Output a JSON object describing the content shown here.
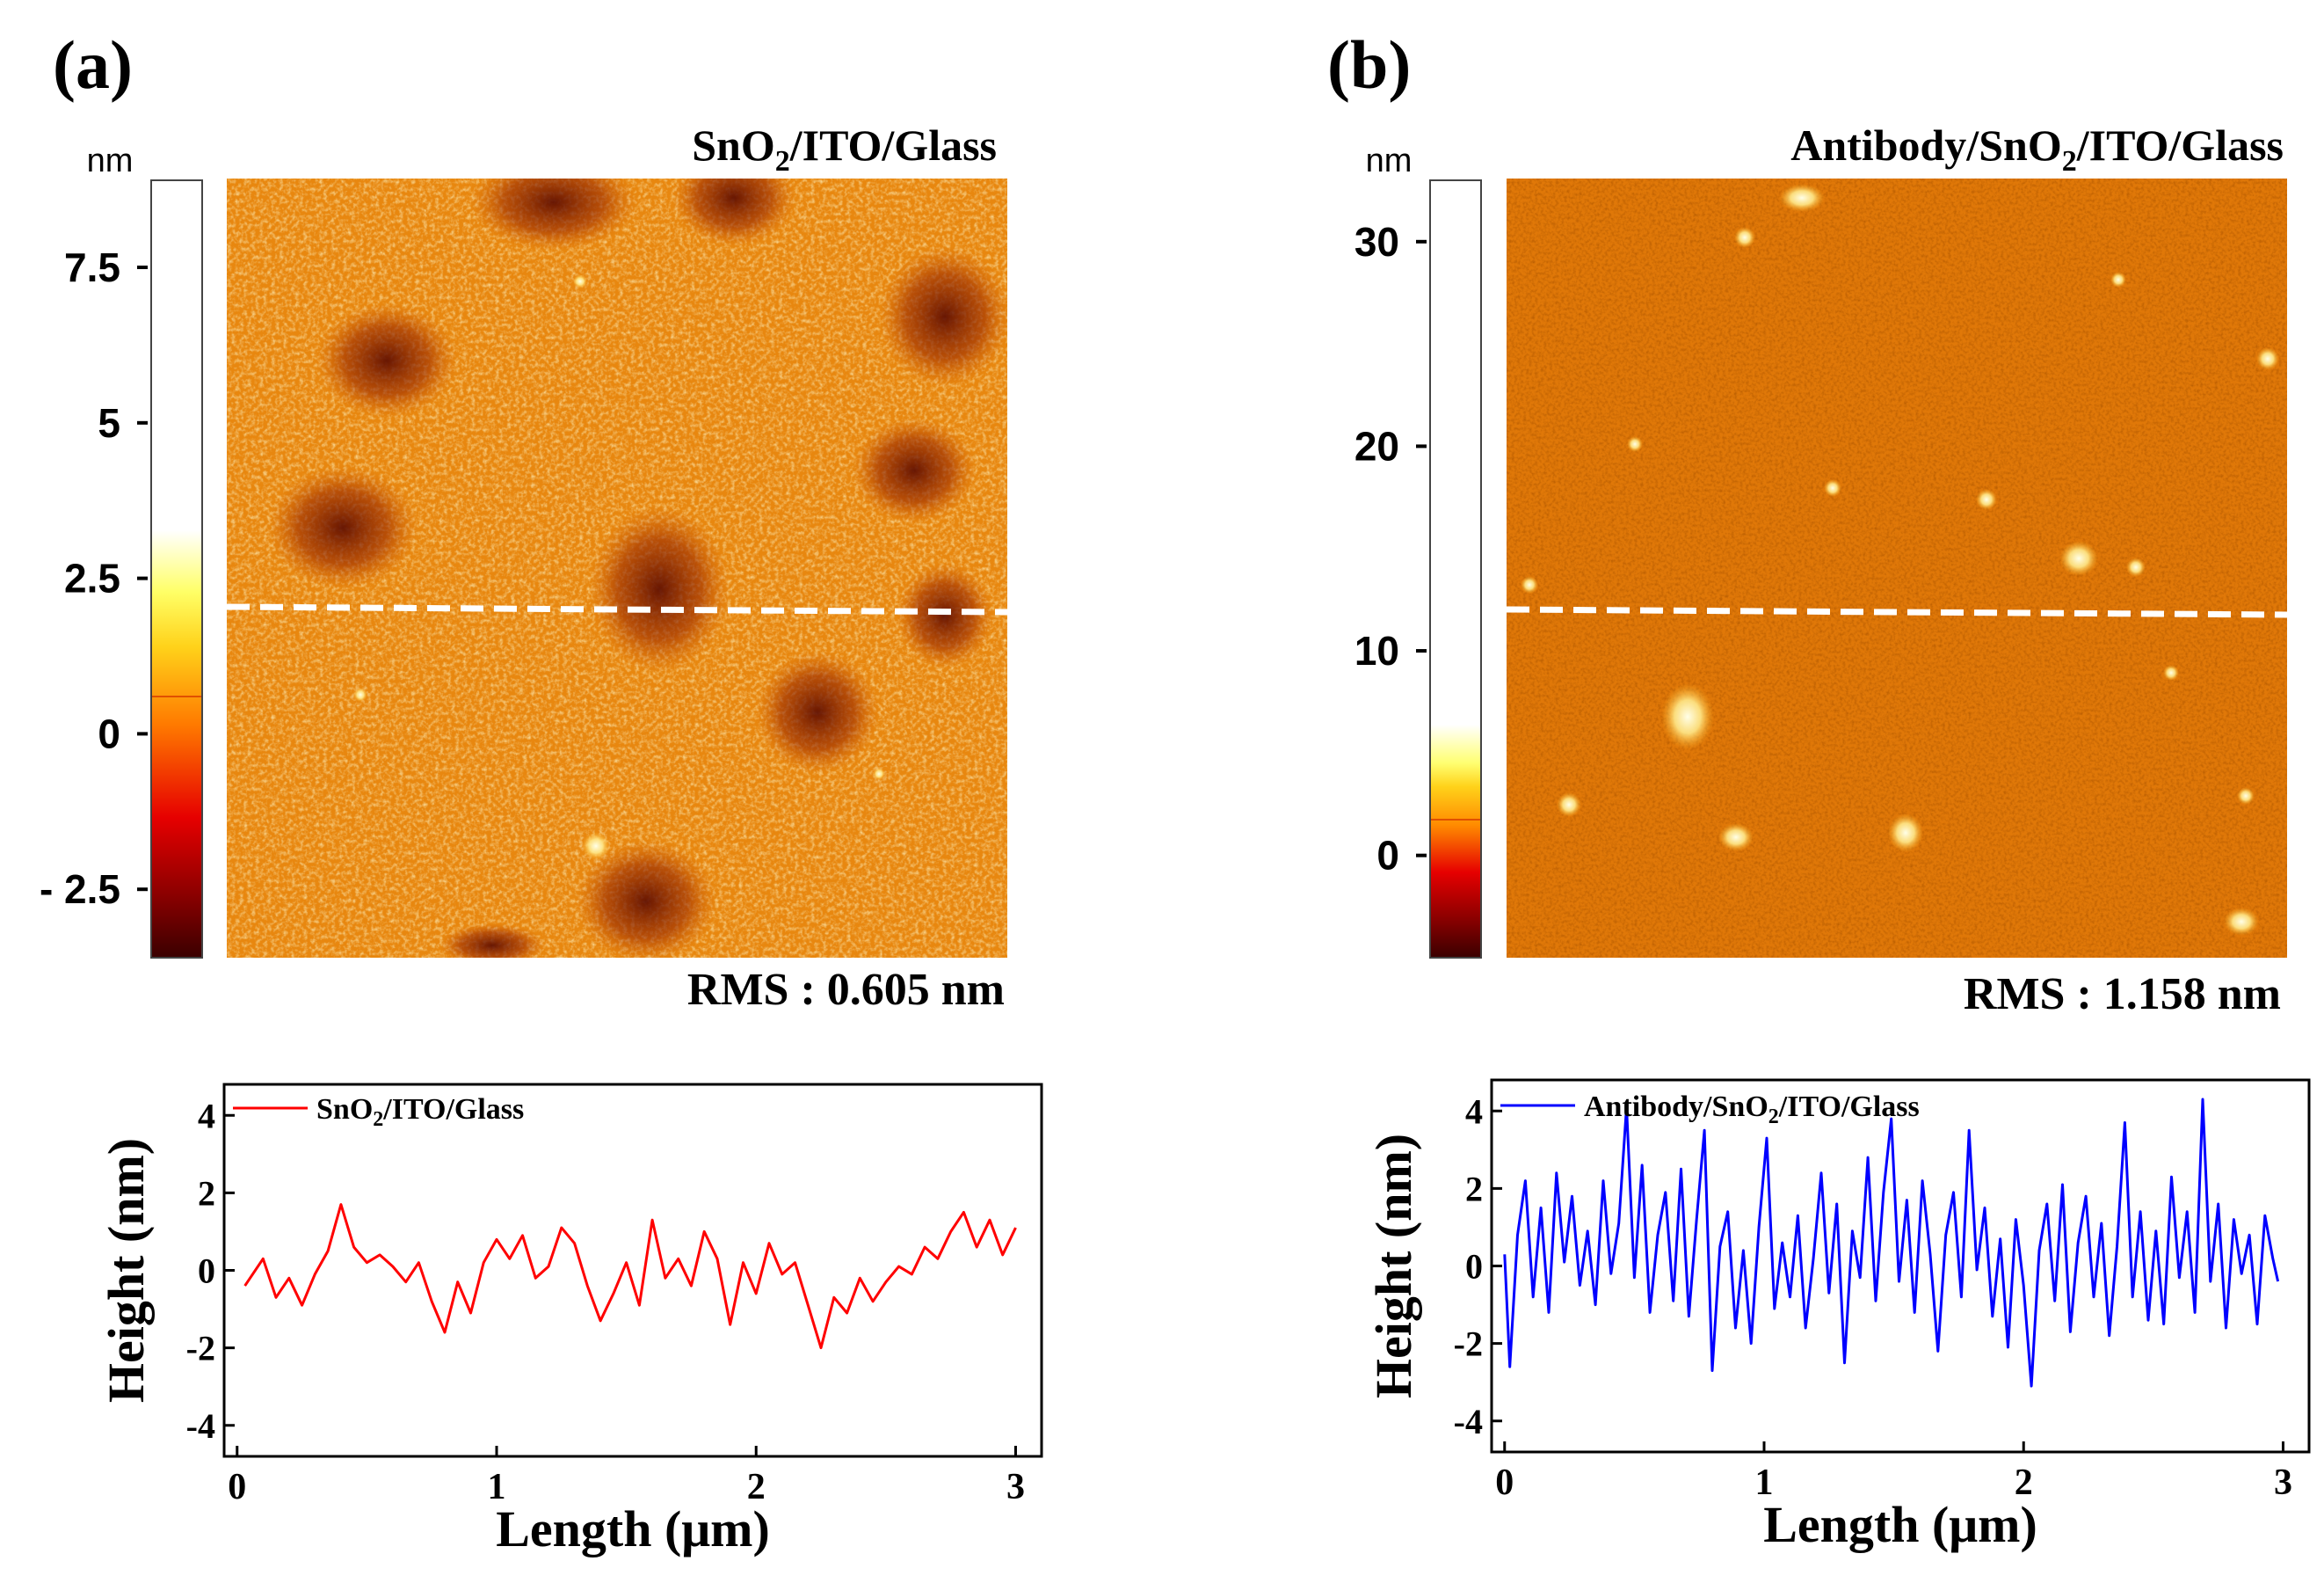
{
  "panels": [
    {
      "letter": "(a)",
      "title_main": "SnO",
      "title_sub": "2",
      "title_rest": "/ITO/Glass",
      "colorbar": {
        "unit": "nm",
        "ticks": [
          "7.5",
          "5",
          "2.5",
          "0",
          "- 2.5"
        ],
        "tick_values": [
          7.5,
          5,
          2.5,
          0,
          -2.5
        ],
        "min": -3.6,
        "max": 8.9
      },
      "rms": "RMS : 0.605 nm"
    },
    {
      "letter": "(b)",
      "title_main": "Antibody/SnO",
      "title_sub": "2",
      "title_rest": "/ITO/Glass",
      "colorbar": {
        "unit": "nm",
        "ticks": [
          "30",
          "20",
          "10",
          "0"
        ],
        "tick_values": [
          30,
          20,
          10,
          0
        ],
        "min": -5,
        "max": 33
      },
      "rms": "RMS : 1.158 nm"
    }
  ],
  "chart_data": [
    {
      "type": "line",
      "xlabel": "Length (μm)",
      "ylabel": "Height (nm)",
      "xlim": [
        -0.05,
        3.1
      ],
      "ylim": [
        -4.8,
        4.8
      ],
      "xticks": [
        "0",
        "1",
        "2",
        "3"
      ],
      "yticks": [
        "4",
        "2",
        "0",
        "-2",
        "-4"
      ],
      "legend_placement": "top-left",
      "series": [
        {
          "name_main": "SnO",
          "name_sub": "2",
          "name_rest": "/ITO/Glass",
          "color": "#ff0000",
          "x": [
            0.03,
            0.1,
            0.15,
            0.2,
            0.25,
            0.3,
            0.35,
            0.4,
            0.45,
            0.5,
            0.55,
            0.6,
            0.65,
            0.7,
            0.75,
            0.8,
            0.85,
            0.9,
            0.95,
            1.0,
            1.05,
            1.1,
            1.15,
            1.2,
            1.25,
            1.3,
            1.35,
            1.4,
            1.45,
            1.5,
            1.55,
            1.6,
            1.65,
            1.7,
            1.75,
            1.8,
            1.85,
            1.9,
            1.95,
            2.0,
            2.05,
            2.1,
            2.15,
            2.2,
            2.25,
            2.3,
            2.35,
            2.4,
            2.45,
            2.5,
            2.55,
            2.6,
            2.65,
            2.7,
            2.75,
            2.8,
            2.85,
            2.9,
            2.95,
            3.0
          ],
          "y": [
            -0.4,
            0.3,
            -0.7,
            -0.2,
            -0.9,
            -0.1,
            0.5,
            1.7,
            0.6,
            0.2,
            0.4,
            0.1,
            -0.3,
            0.2,
            -0.8,
            -1.6,
            -0.3,
            -1.1,
            0.2,
            0.8,
            0.3,
            0.9,
            -0.2,
            0.1,
            1.1,
            0.7,
            -0.4,
            -1.3,
            -0.6,
            0.2,
            -0.9,
            1.3,
            -0.2,
            0.3,
            -0.4,
            1.0,
            0.3,
            -1.4,
            0.2,
            -0.6,
            0.7,
            -0.1,
            0.2,
            -0.9,
            -2.0,
            -0.7,
            -1.1,
            -0.2,
            -0.8,
            -0.3,
            0.1,
            -0.1,
            0.6,
            0.3,
            1.0,
            1.5,
            0.6,
            1.3,
            0.4,
            1.1
          ]
        },
        {
          "name_main": "Antibody/SnO",
          "name_sub": "2",
          "name_rest": "/ITO/Glass",
          "color": "#0000ff",
          "x": [
            0.0,
            0.02,
            0.05,
            0.08,
            0.11,
            0.14,
            0.17,
            0.2,
            0.23,
            0.26,
            0.29,
            0.32,
            0.35,
            0.38,
            0.41,
            0.44,
            0.47,
            0.5,
            0.53,
            0.56,
            0.59,
            0.62,
            0.65,
            0.68,
            0.71,
            0.74,
            0.77,
            0.8,
            0.83,
            0.86,
            0.89,
            0.92,
            0.95,
            0.98,
            1.01,
            1.04,
            1.07,
            1.1,
            1.13,
            1.16,
            1.19,
            1.22,
            1.25,
            1.28,
            1.31,
            1.34,
            1.37,
            1.4,
            1.43,
            1.46,
            1.49,
            1.52,
            1.55,
            1.58,
            1.61,
            1.64,
            1.67,
            1.7,
            1.73,
            1.76,
            1.79,
            1.82,
            1.85,
            1.88,
            1.91,
            1.94,
            1.97,
            2.0,
            2.03,
            2.06,
            2.09,
            2.12,
            2.15,
            2.18,
            2.21,
            2.24,
            2.27,
            2.3,
            2.33,
            2.36,
            2.39,
            2.42,
            2.45,
            2.48,
            2.51,
            2.54,
            2.57,
            2.6,
            2.63,
            2.66,
            2.69,
            2.72,
            2.75,
            2.78,
            2.81,
            2.84,
            2.87,
            2.9,
            2.93,
            2.96,
            2.98
          ],
          "y": [
            0.3,
            -2.6,
            0.8,
            2.2,
            -0.8,
            1.5,
            -1.2,
            2.4,
            0.1,
            1.8,
            -0.5,
            0.9,
            -1.0,
            2.2,
            -0.2,
            1.1,
            4.1,
            -0.3,
            2.6,
            -1.2,
            0.8,
            1.9,
            -0.9,
            2.5,
            -1.3,
            1.2,
            3.5,
            -2.7,
            0.5,
            1.4,
            -1.6,
            0.4,
            -2.0,
            1.0,
            3.3,
            -1.1,
            0.6,
            -0.8,
            1.3,
            -1.6,
            0.2,
            2.4,
            -0.7,
            1.6,
            -2.5,
            0.9,
            -0.3,
            2.8,
            -0.9,
            1.9,
            3.8,
            -0.4,
            1.7,
            -1.2,
            2.2,
            0.3,
            -2.2,
            0.8,
            1.9,
            -0.8,
            3.5,
            -0.1,
            1.5,
            -1.3,
            0.7,
            -2.1,
            1.2,
            -0.5,
            -3.1,
            0.4,
            1.6,
            -0.9,
            2.1,
            -1.7,
            0.6,
            1.8,
            -0.8,
            1.1,
            -1.8,
            0.5,
            3.7,
            -0.8,
            1.4,
            -1.4,
            0.9,
            -1.5,
            2.3,
            -0.3,
            1.4,
            -1.2,
            4.3,
            -0.4,
            1.6,
            -1.6,
            1.2,
            -0.2,
            0.8,
            -1.5,
            1.3,
            0.2,
            -0.4
          ]
        }
      ]
    }
  ]
}
